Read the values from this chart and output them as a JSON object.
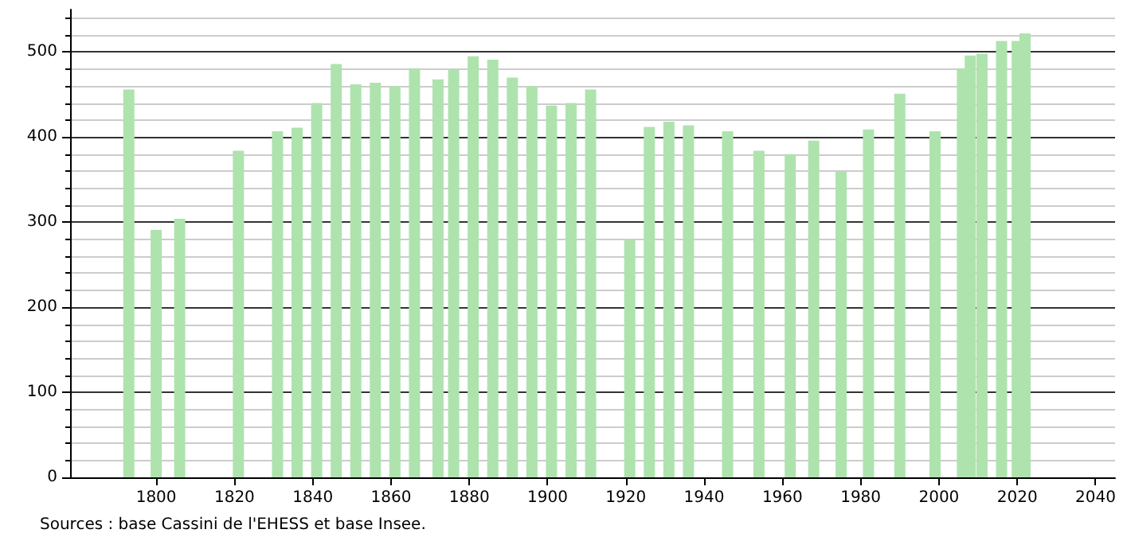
{
  "chart_data": {
    "type": "bar",
    "color": "#aee3ae",
    "x": [
      1793,
      1800,
      1806,
      1821,
      1831,
      1836,
      1841,
      1846,
      1851,
      1856,
      1861,
      1866,
      1872,
      1876,
      1881,
      1886,
      1891,
      1896,
      1901,
      1906,
      1911,
      1921,
      1926,
      1931,
      1936,
      1946,
      1954,
      1962,
      1968,
      1975,
      1982,
      1990,
      1999,
      2006,
      2008,
      2011,
      2016,
      2020,
      2022
    ],
    "values": [
      456,
      291,
      304,
      384,
      407,
      411,
      440,
      486,
      462,
      464,
      460,
      481,
      468,
      479,
      495,
      491,
      470,
      460,
      437,
      440,
      456,
      279,
      412,
      418,
      414,
      407,
      384,
      380,
      396,
      360,
      409,
      451,
      407,
      481,
      496,
      498,
      513,
      513,
      522
    ],
    "xlim": [
      1778,
      2045
    ],
    "xticks": [
      1800,
      1820,
      1840,
      1860,
      1880,
      1900,
      1920,
      1940,
      1960,
      1980,
      2000,
      2020,
      2040
    ],
    "ylim": [
      0,
      550
    ],
    "yticks": [
      0,
      100,
      200,
      300,
      400,
      500
    ],
    "grid": "y",
    "annotations": [
      "Sources : base Cassini de l'EHESS et base Insee."
    ]
  }
}
